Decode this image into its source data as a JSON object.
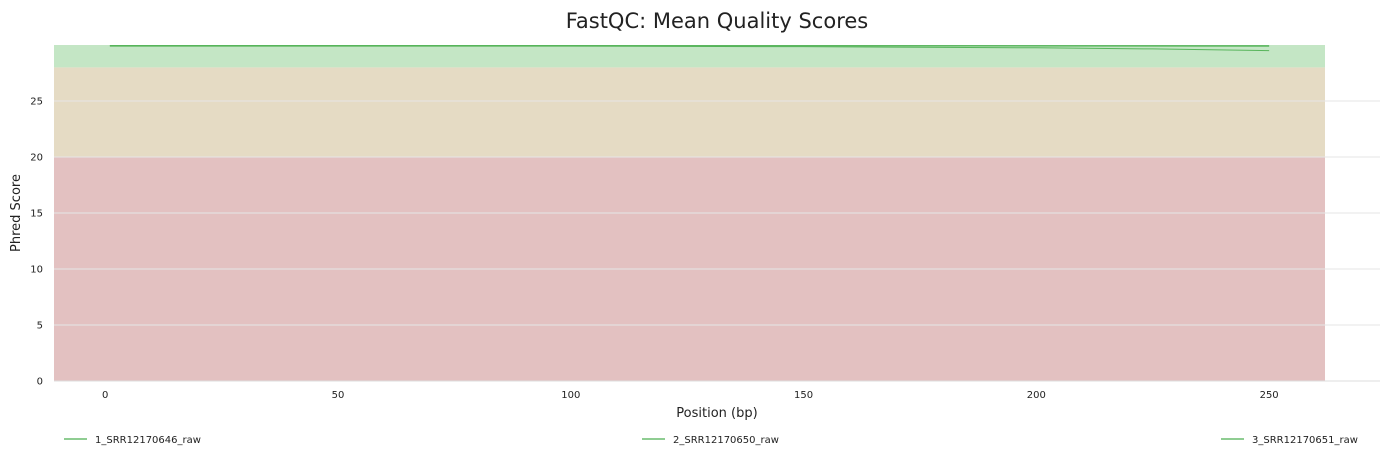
{
  "chart_data": {
    "type": "line",
    "title": "FastQC: Mean Quality Scores",
    "xlabel": "Position (bp)",
    "ylabel": "Phred Score",
    "xlim": [
      -11,
      262
    ],
    "ylim": [
      0,
      30
    ],
    "x_ticks": [
      0,
      50,
      100,
      150,
      200,
      250
    ],
    "y_ticks": [
      0,
      5,
      10,
      15,
      20,
      25
    ],
    "grid": "horizontal",
    "legend_position": "bottom",
    "background_bands": [
      {
        "from": 0,
        "to": 20,
        "color": "#e3c1c1"
      },
      {
        "from": 20,
        "to": 28,
        "color": "#e5dbc4"
      },
      {
        "from": 28,
        "to": 30,
        "color": "#c4e6c5"
      }
    ],
    "series": [
      {
        "name": "1_SRR12170646_raw",
        "color": "#4caf50",
        "x": [
          1,
          50,
          100,
          150,
          175,
          200,
          225,
          250
        ],
        "y": [
          29.9,
          29.9,
          29.9,
          29.85,
          29.8,
          29.75,
          29.65,
          29.5
        ]
      },
      {
        "name": "2_SRR12170650_raw",
        "color": "#4caf50",
        "x": [
          1,
          50,
          100,
          150,
          200,
          250
        ],
        "y": [
          29.95,
          29.95,
          29.95,
          29.95,
          29.95,
          29.95
        ]
      },
      {
        "name": "3_SRR12170651_raw",
        "color": "#4caf50",
        "x": [
          1,
          50,
          100,
          150,
          200,
          250
        ],
        "y": [
          29.93,
          29.93,
          29.93,
          29.92,
          29.9,
          29.88
        ]
      }
    ]
  }
}
